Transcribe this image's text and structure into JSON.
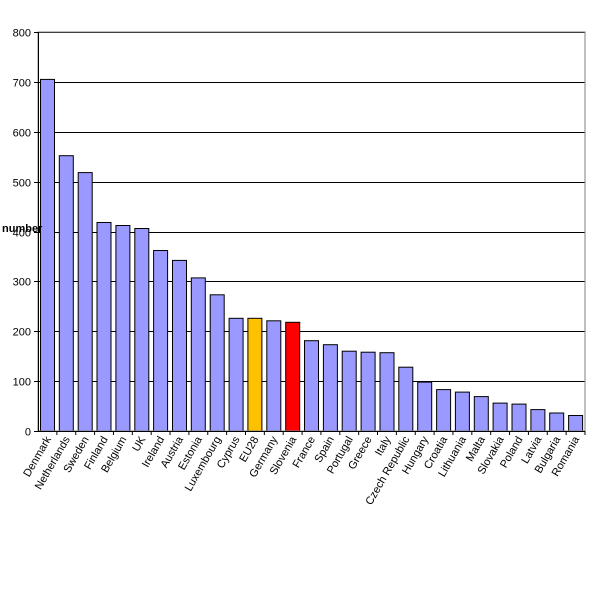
{
  "chart_data": {
    "type": "bar",
    "title": "",
    "xlabel": "",
    "ylabel": "number",
    "ylim": [
      0,
      800
    ],
    "yticks": [
      0,
      100,
      200,
      300,
      400,
      500,
      600,
      700,
      800
    ],
    "grid": true,
    "legend": "none",
    "categories": [
      "Denmark",
      "Netherlands",
      "Sweden",
      "Finland",
      "Belgium",
      "UK",
      "Ireland",
      "Austria",
      "Estonia",
      "Luxembourg",
      "Cyprus",
      "EU28",
      "Germany",
      "Slovenia",
      "France",
      "Spain",
      "Portugal",
      "Greece",
      "Italy",
      "Czech Republic",
      "Hungary",
      "Croatia",
      "Lithuania",
      "Malta",
      "Slovakia",
      "Poland",
      "Latvia",
      "Bulgaria",
      "Romania"
    ],
    "values": [
      705,
      552,
      518,
      418,
      412,
      406,
      362,
      342,
      307,
      273,
      226,
      226,
      221,
      218,
      181,
      173,
      160,
      158,
      157,
      128,
      98,
      83,
      78,
      69,
      56,
      54,
      43,
      36,
      31
    ],
    "colors": {
      "default": "#9999FF",
      "highlights": {
        "EU28": "#FFC000",
        "Slovenia": "#FF0000"
      },
      "bar_stroke": "#000000",
      "grid": "#000000"
    }
  }
}
